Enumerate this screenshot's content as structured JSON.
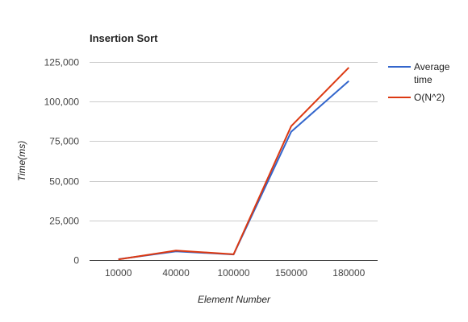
{
  "chart_data": {
    "type": "line",
    "title": "Insertion Sort",
    "xlabel": "Element Number",
    "ylabel": "Time(ms)",
    "categories": [
      "10000",
      "40000",
      "100000",
      "150000",
      "180000"
    ],
    "ylim": [
      0,
      125000
    ],
    "yticks": [
      0,
      25000,
      50000,
      75000,
      100000,
      125000
    ],
    "ytick_labels": [
      "0",
      "25,000",
      "50,000",
      "75,000",
      "100,000",
      "125,000"
    ],
    "grid": true,
    "legend_position": "right",
    "series": [
      {
        "name": "Average time",
        "color": "#3366cc",
        "values": [
          500,
          5500,
          3500,
          81000,
          113000
        ]
      },
      {
        "name": "O(N^2)",
        "color": "#dc3912",
        "values": [
          400,
          6000,
          3600,
          84500,
          121500
        ]
      }
    ]
  }
}
